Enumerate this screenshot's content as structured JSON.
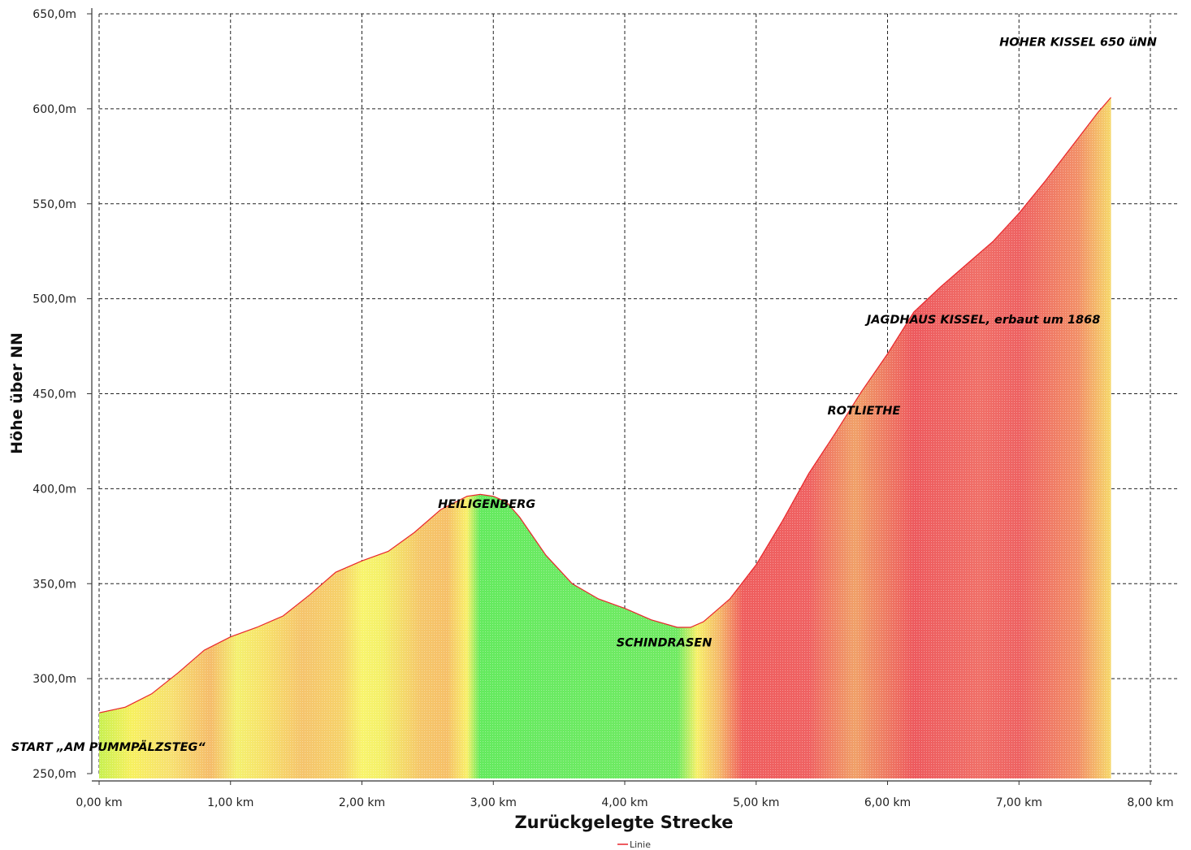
{
  "chart_data": {
    "type": "area",
    "title": "",
    "xlabel": "Zurückgelegte Strecke",
    "ylabel": "Höhe über NN",
    "xlim": [
      0,
      8
    ],
    "ylim": [
      250,
      650
    ],
    "grid": true,
    "x_ticks": [
      "0,00 km",
      "1,00 km",
      "2,00 km",
      "3,00 km",
      "4,00 km",
      "5,00 km",
      "6,00 km",
      "7,00 km",
      "8,00 km"
    ],
    "y_ticks": [
      "250,0m",
      "300,0m",
      "350,0m",
      "400,0m",
      "450,0m",
      "500,0m",
      "550,0m",
      "600,0m",
      "650,0m"
    ],
    "legend": {
      "position": "bottom-center",
      "entries": [
        "Linie"
      ]
    },
    "series": [
      {
        "name": "Linie",
        "color": "#e8262b",
        "x": [
          0,
          0.2,
          0.4,
          0.6,
          0.8,
          1.0,
          1.2,
          1.4,
          1.6,
          1.8,
          2.0,
          2.2,
          2.4,
          2.6,
          2.8,
          2.9,
          3.0,
          3.1,
          3.2,
          3.4,
          3.6,
          3.8,
          4.0,
          4.2,
          4.4,
          4.5,
          4.6,
          4.8,
          5.0,
          5.2,
          5.4,
          5.6,
          5.8,
          6.0,
          6.2,
          6.4,
          6.6,
          6.8,
          7.0,
          7.2,
          7.4,
          7.6,
          7.7
        ],
        "y": [
          282,
          285,
          292,
          303,
          315,
          322,
          327,
          333,
          344,
          356,
          362,
          367,
          377,
          389,
          396,
          397,
          396,
          393,
          385,
          365,
          350,
          342,
          337,
          331,
          327,
          327,
          330,
          342,
          360,
          383,
          408,
          429,
          451,
          471,
          493,
          506,
          518,
          530,
          545,
          562,
          580,
          598,
          606
        ]
      }
    ],
    "gradient_stops": [
      {
        "x": 0.0,
        "color": "#c8f050"
      },
      {
        "x": 0.25,
        "color": "#f7f060"
      },
      {
        "x": 0.55,
        "color": "#f7e070"
      },
      {
        "x": 0.85,
        "color": "#f5bc6a"
      },
      {
        "x": 1.05,
        "color": "#f4f070"
      },
      {
        "x": 1.25,
        "color": "#f7e26a"
      },
      {
        "x": 1.55,
        "color": "#f5c46c"
      },
      {
        "x": 1.85,
        "color": "#f6d26a"
      },
      {
        "x": 2.0,
        "color": "#f8f46c"
      },
      {
        "x": 2.15,
        "color": "#f4f06a"
      },
      {
        "x": 2.45,
        "color": "#f5c66a"
      },
      {
        "x": 2.65,
        "color": "#f6c068"
      },
      {
        "x": 2.8,
        "color": "#f8f06a"
      },
      {
        "x": 2.9,
        "color": "#64ea5e"
      },
      {
        "x": 3.4,
        "color": "#6aea62"
      },
      {
        "x": 4.4,
        "color": "#70ea62"
      },
      {
        "x": 4.55,
        "color": "#f6f06a"
      },
      {
        "x": 4.72,
        "color": "#f5b86a"
      },
      {
        "x": 4.9,
        "color": "#ef5e5e"
      },
      {
        "x": 5.4,
        "color": "#ef6262"
      },
      {
        "x": 5.75,
        "color": "#f0a068"
      },
      {
        "x": 6.2,
        "color": "#ed5a5e"
      },
      {
        "x": 6.7,
        "color": "#f07068"
      },
      {
        "x": 7.0,
        "color": "#ee6262"
      },
      {
        "x": 7.45,
        "color": "#f29068"
      },
      {
        "x": 7.7,
        "color": "#f6d86a"
      }
    ],
    "annotations": [
      {
        "text": "START „AM PUMMPÄLZSTEG“",
        "x": 0.07,
        "y": 262
      },
      {
        "text": "HEILIGENBERG",
        "x": 2.95,
        "y": 390
      },
      {
        "text": "SCHINDRASEN",
        "x": 4.3,
        "y": 317
      },
      {
        "text": "ROTLIETHE",
        "x": 5.82,
        "y": 439
      },
      {
        "text": "JAGDHAUS KISSEL, erbaut um 1868",
        "x": 6.73,
        "y": 487
      },
      {
        "text": "HOHER KISSEL 650 üNN",
        "x": 7.45,
        "y": 633
      }
    ]
  }
}
